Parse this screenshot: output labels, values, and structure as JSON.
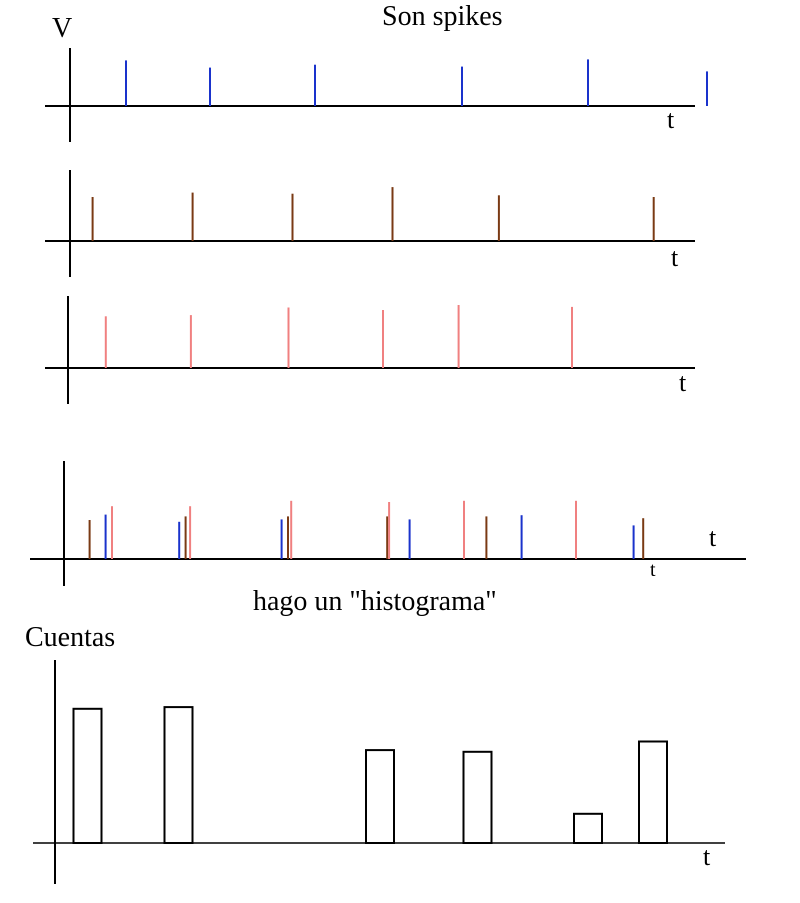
{
  "title": "Son spikes",
  "y_label_voltage": "V",
  "time_label": "t",
  "time_label_small": "t",
  "histogram_caption": "hago un \"histograma\"",
  "histogram_ylabel": "Cuentas",
  "colors": {
    "axis": "#000000",
    "blue": "#1a33cc",
    "brown": "#7a3a14",
    "pink": "#f08080"
  },
  "chart_data": [
    {
      "type": "line",
      "name": "spike-train-blue",
      "series_color": "blue",
      "spike_times": [
        0.08,
        0.2,
        0.35,
        0.56,
        0.74,
        0.91
      ],
      "spike_heights": [
        0.95,
        0.8,
        0.86,
        0.82,
        0.97,
        0.72
      ]
    },
    {
      "type": "line",
      "name": "spike-train-brown",
      "series_color": "brown",
      "spike_times": [
        0.035,
        0.19,
        0.345,
        0.5,
        0.665,
        0.905
      ],
      "spike_heights": [
        0.8,
        0.88,
        0.86,
        0.98,
        0.83,
        0.8
      ]
    },
    {
      "type": "line",
      "name": "spike-train-pink",
      "series_color": "pink",
      "spike_times": [
        0.06,
        0.195,
        0.35,
        0.5,
        0.62,
        0.8
      ],
      "spike_heights": [
        0.82,
        0.84,
        0.96,
        0.92,
        1.0,
        0.97
      ]
    },
    {
      "type": "line",
      "name": "spike-trains-overlaid",
      "spikes": [
        {
          "t": 0.04,
          "h": 0.65,
          "color": "brown"
        },
        {
          "t": 0.065,
          "h": 0.74,
          "color": "blue"
        },
        {
          "t": 0.075,
          "h": 0.88,
          "color": "pink"
        },
        {
          "t": 0.18,
          "h": 0.62,
          "color": "blue"
        },
        {
          "t": 0.19,
          "h": 0.71,
          "color": "brown"
        },
        {
          "t": 0.197,
          "h": 0.88,
          "color": "pink"
        },
        {
          "t": 0.34,
          "h": 0.66,
          "color": "blue"
        },
        {
          "t": 0.35,
          "h": 0.71,
          "color": "brown"
        },
        {
          "t": 0.355,
          "h": 0.97,
          "color": "pink"
        },
        {
          "t": 0.505,
          "h": 0.71,
          "color": "brown"
        },
        {
          "t": 0.508,
          "h": 0.95,
          "color": "pink"
        },
        {
          "t": 0.54,
          "h": 0.66,
          "color": "blue"
        },
        {
          "t": 0.625,
          "h": 0.97,
          "color": "pink"
        },
        {
          "t": 0.66,
          "h": 0.71,
          "color": "brown"
        },
        {
          "t": 0.715,
          "h": 0.73,
          "color": "blue"
        },
        {
          "t": 0.8,
          "h": 0.97,
          "color": "pink"
        },
        {
          "t": 0.89,
          "h": 0.56,
          "color": "blue"
        },
        {
          "t": 0.905,
          "h": 0.68,
          "color": "brown"
        }
      ]
    },
    {
      "type": "bar",
      "name": "histogram",
      "bins": [
        {
          "t": 0.05,
          "count": 0.78
        },
        {
          "t": 0.19,
          "count": 0.79
        },
        {
          "t": 0.5,
          "count": 0.54
        },
        {
          "t": 0.65,
          "count": 0.53
        },
        {
          "t": 0.82,
          "count": 0.17
        },
        {
          "t": 0.92,
          "count": 0.59
        }
      ],
      "ylim": [
        0,
        1
      ]
    }
  ]
}
